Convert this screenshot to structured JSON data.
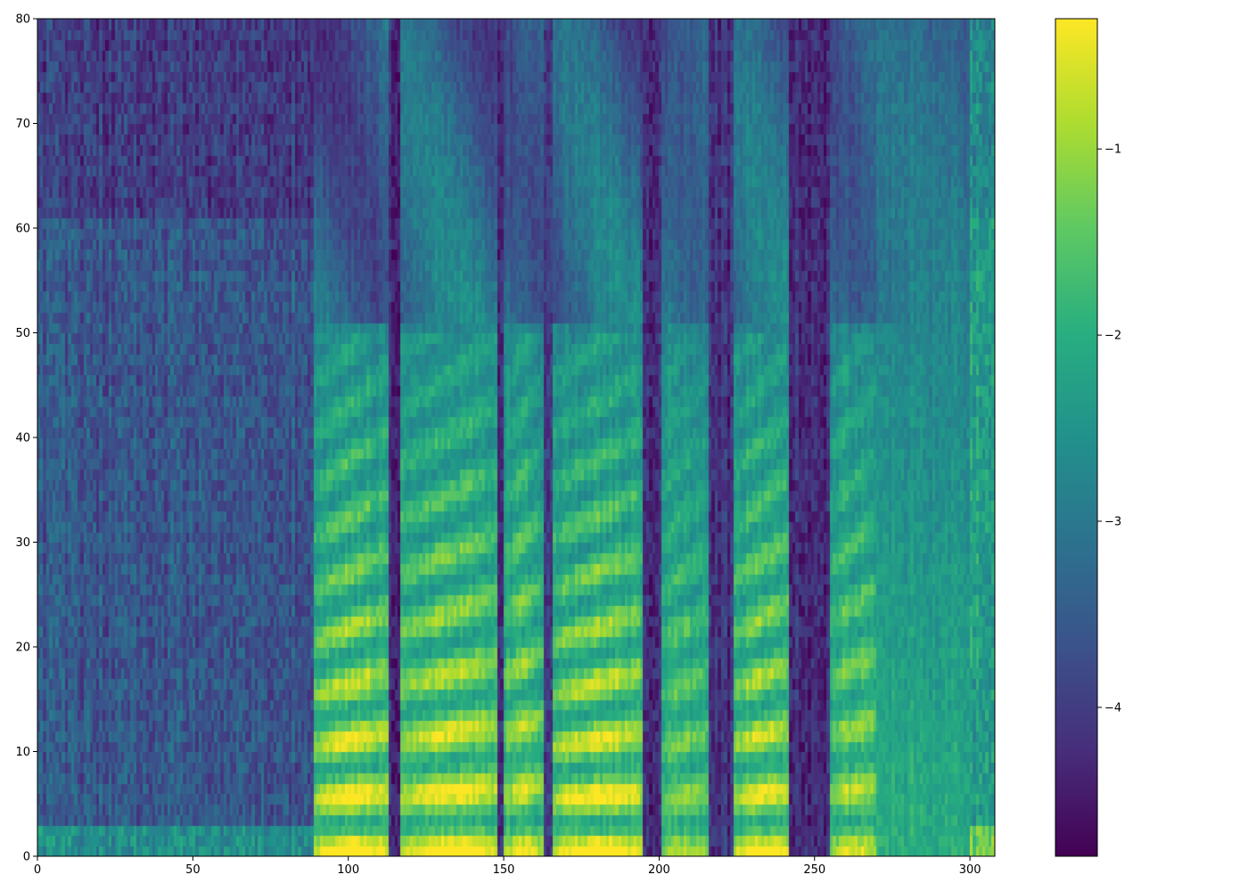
{
  "chart_data": {
    "type": "heatmap",
    "title": "",
    "xlabel": "",
    "ylabel": "",
    "xlim": [
      0,
      308
    ],
    "ylim": [
      0,
      80
    ],
    "x_ticks": [
      0,
      50,
      100,
      150,
      200,
      250,
      300
    ],
    "y_ticks": [
      0,
      10,
      20,
      30,
      40,
      50,
      60,
      70,
      80
    ],
    "n_frames": 308,
    "n_mel_bins": 80,
    "colormap": "viridis",
    "colorbar": {
      "vmin": -4.8,
      "vmax": -0.3,
      "ticks": [
        -1,
        -2,
        -3,
        -4
      ],
      "tick_labels": [
        "−1",
        "−2",
        "−3",
        "−4"
      ]
    },
    "silence_level": -4.2,
    "voiced_segments": [
      {
        "start": 89,
        "end": 113,
        "pitch_spacing": 5.0,
        "strength": 1.0
      },
      {
        "start": 117,
        "end": 148,
        "pitch_spacing": 5.3,
        "strength": 0.95
      },
      {
        "start": 150,
        "end": 163,
        "pitch_spacing": 5.6,
        "strength": 0.8
      },
      {
        "start": 166,
        "end": 195,
        "pitch_spacing": 5.0,
        "strength": 1.0
      },
      {
        "start": 201,
        "end": 216,
        "pitch_spacing": 5.0,
        "strength": 0.55
      },
      {
        "start": 224,
        "end": 242,
        "pitch_spacing": 5.2,
        "strength": 0.9
      },
      {
        "start": 255,
        "end": 270,
        "pitch_spacing": 5.5,
        "strength": 0.7
      },
      {
        "start": 270,
        "end": 300,
        "pitch_spacing": 0,
        "strength": 0.3
      }
    ],
    "noise_segments": [
      {
        "start": 0,
        "end": 89,
        "level": -3.6
      },
      {
        "start": 300,
        "end": 308,
        "level": -2.3
      }
    ]
  }
}
